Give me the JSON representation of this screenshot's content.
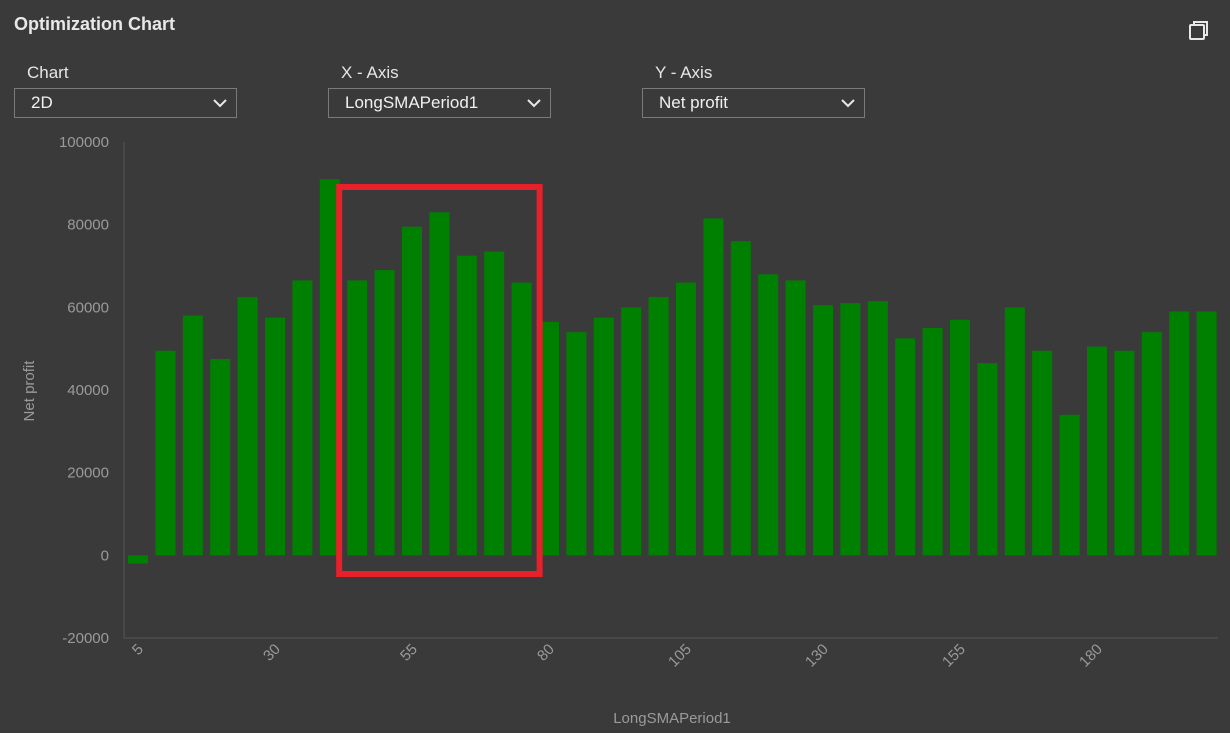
{
  "header": {
    "title": "Optimization Chart",
    "restore_icon": "restore-window-icon"
  },
  "controls": {
    "chart": {
      "label": "Chart",
      "value": "2D"
    },
    "x_axis": {
      "label": "X - Axis",
      "value": "LongSMAPeriod1"
    },
    "y_axis": {
      "label": "Y - Axis",
      "value": "Net profit"
    }
  },
  "colors": {
    "background": "#3a3a3a",
    "bar": "#008000",
    "highlight": "#e8202a",
    "axis_text": "#9a9a9a"
  },
  "chart_data": {
    "type": "bar",
    "xlabel": "LongSMAPeriod1",
    "ylabel": "Net profit",
    "ylim": [
      -20000,
      100000
    ],
    "yticks": [
      100000,
      80000,
      60000,
      40000,
      20000,
      0,
      -20000
    ],
    "xticks": [
      5,
      30,
      55,
      80,
      105,
      130,
      155,
      180
    ],
    "x": [
      5,
      10,
      15,
      20,
      25,
      30,
      35,
      40,
      45,
      50,
      55,
      60,
      65,
      70,
      75,
      80,
      85,
      90,
      95,
      100,
      105,
      110,
      115,
      120,
      125,
      130,
      135,
      140,
      145,
      150,
      155,
      160,
      165,
      170,
      175,
      180,
      185,
      190,
      195,
      200
    ],
    "values": [
      -2000,
      49500,
      58000,
      47500,
      62500,
      57500,
      66500,
      91000,
      66500,
      69000,
      79500,
      83000,
      72500,
      73500,
      66000,
      56500,
      54000,
      57500,
      60000,
      62500,
      66000,
      81500,
      76000,
      68000,
      66500,
      60500,
      61000,
      61500,
      52500,
      55000,
      57000,
      46500,
      60000,
      49500,
      34000,
      50500,
      49500,
      54000,
      59000,
      59000
    ],
    "highlight_range": [
      45,
      75
    ]
  }
}
